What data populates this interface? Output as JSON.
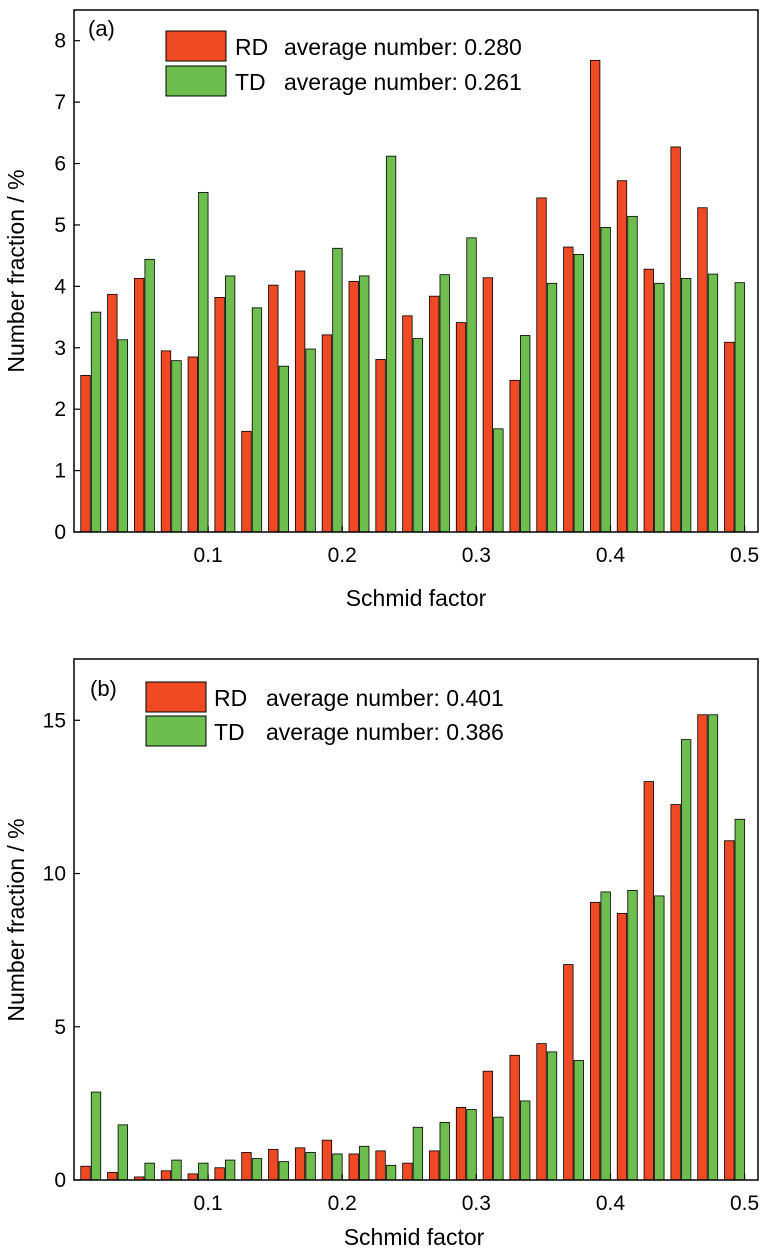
{
  "chart_data": [
    {
      "type": "bar",
      "panel_label": "(a)",
      "xlabel": "Schmid factor",
      "ylabel": "Number fraction / %",
      "xlim": [
        0.0,
        0.51
      ],
      "ylim": [
        0,
        8.5
      ],
      "x_ticks": [
        0.1,
        0.2,
        0.3,
        0.4,
        0.5
      ],
      "x_tick_labels": [
        "0.1",
        "0.2",
        "0.3",
        "0.4",
        "0.5"
      ],
      "y_ticks": [
        0,
        1,
        2,
        3,
        4,
        5,
        6,
        7,
        8
      ],
      "y_tick_labels": [
        "0",
        "1",
        "2",
        "3",
        "4",
        "5",
        "6",
        "7",
        "8"
      ],
      "bin_centers": [
        0.0125,
        0.0325,
        0.0525,
        0.0725,
        0.0925,
        0.1125,
        0.1325,
        0.1525,
        0.1725,
        0.1925,
        0.2125,
        0.2325,
        0.2525,
        0.2725,
        0.2925,
        0.3125,
        0.3325,
        0.3525,
        0.3725,
        0.3925,
        0.4125,
        0.4325,
        0.4525,
        0.4725,
        0.4925
      ],
      "legend_position": "top-center",
      "grid": false,
      "series": [
        {
          "name": "RD",
          "legend_text": "average number: 0.280",
          "color": "#f04a24",
          "values": [
            2.55,
            3.87,
            4.13,
            2.95,
            2.85,
            3.82,
            1.64,
            4.02,
            4.25,
            3.21,
            4.08,
            2.81,
            3.52,
            3.84,
            3.41,
            4.14,
            2.47,
            5.44,
            4.64,
            7.68,
            5.72,
            4.28,
            6.27,
            5.28,
            3.09
          ]
        },
        {
          "name": "TD",
          "legend_text": "average number: 0.261",
          "color": "#6dbd4f",
          "values": [
            3.58,
            3.13,
            4.44,
            2.79,
            5.53,
            4.17,
            3.65,
            2.7,
            2.98,
            4.62,
            4.17,
            6.12,
            3.15,
            4.19,
            4.79,
            1.68,
            3.2,
            4.05,
            4.52,
            4.96,
            5.14,
            4.05,
            4.13,
            4.2,
            4.06
          ]
        }
      ]
    },
    {
      "type": "bar",
      "panel_label": "(b)",
      "xlabel": "Schmid factor",
      "ylabel": "Number fraction / %",
      "xlim": [
        0.0,
        0.51
      ],
      "ylim": [
        0,
        17
      ],
      "x_ticks": [
        0.1,
        0.2,
        0.3,
        0.4,
        0.5
      ],
      "x_tick_labels": [
        "0.1",
        "0.2",
        "0.3",
        "0.4",
        "0.5"
      ],
      "y_ticks": [
        0,
        5,
        10,
        15
      ],
      "y_tick_labels": [
        "0",
        "5",
        "10",
        "15"
      ],
      "bin_centers": [
        0.0125,
        0.0325,
        0.0525,
        0.0725,
        0.0925,
        0.1125,
        0.1325,
        0.1525,
        0.1725,
        0.1925,
        0.2125,
        0.2325,
        0.2525,
        0.2725,
        0.2925,
        0.3125,
        0.3325,
        0.3525,
        0.3725,
        0.3925,
        0.4125,
        0.4325,
        0.4525,
        0.4725,
        0.4925
      ],
      "legend_position": "top-center",
      "grid": false,
      "series": [
        {
          "name": "RD",
          "legend_text": "average number: 0.401",
          "color": "#f04a24",
          "values": [
            0.45,
            0.25,
            0.1,
            0.3,
            0.2,
            0.4,
            0.9,
            1.0,
            1.05,
            1.3,
            0.85,
            0.95,
            0.55,
            0.95,
            2.37,
            3.55,
            4.07,
            4.45,
            7.03,
            9.06,
            8.7,
            13.0,
            12.25,
            15.18,
            11.07
          ]
        },
        {
          "name": "TD",
          "legend_text": "average number: 0.386",
          "color": "#6dbd4f",
          "values": [
            2.87,
            1.8,
            0.55,
            0.65,
            0.55,
            0.65,
            0.7,
            0.6,
            0.9,
            0.85,
            1.1,
            0.48,
            1.72,
            1.88,
            2.3,
            2.05,
            2.58,
            4.18,
            3.9,
            9.4,
            9.45,
            9.27,
            14.37,
            15.18,
            11.77
          ]
        }
      ]
    }
  ]
}
